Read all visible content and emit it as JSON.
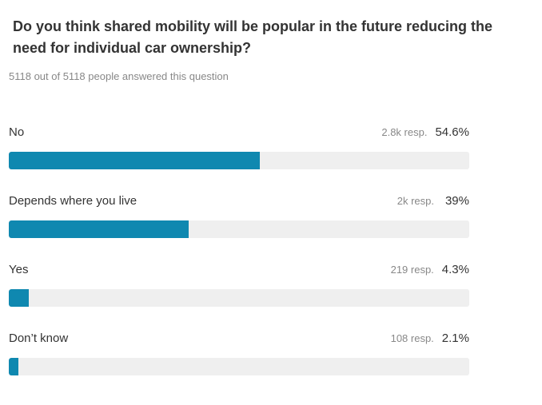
{
  "poll": {
    "question": "Do you think shared mobility will be popular in the future reducing the need for individual car ownership?",
    "answered_text": "5118 out of 5118 people answered this question"
  },
  "colors": {
    "bar_fill": "#0f88b0",
    "bar_track": "#efefef"
  },
  "chart_data": {
    "type": "bar",
    "orientation": "horizontal",
    "categories": [
      "No",
      "Depends where you live",
      "Yes",
      "Don’t know"
    ],
    "values": [
      54.6,
      39,
      4.3,
      2.1
    ],
    "value_unit": "%",
    "xlim": [
      0,
      100
    ],
    "responses": [
      "2.8k resp.",
      "2k resp.",
      "219 resp.",
      "108 resp."
    ],
    "percent_labels": [
      "54.6%",
      "39%",
      "4.3%",
      "2.1%"
    ],
    "title": "Do you think shared mobility will be popular in the future reducing the need for individual car ownership?",
    "grid": false
  }
}
